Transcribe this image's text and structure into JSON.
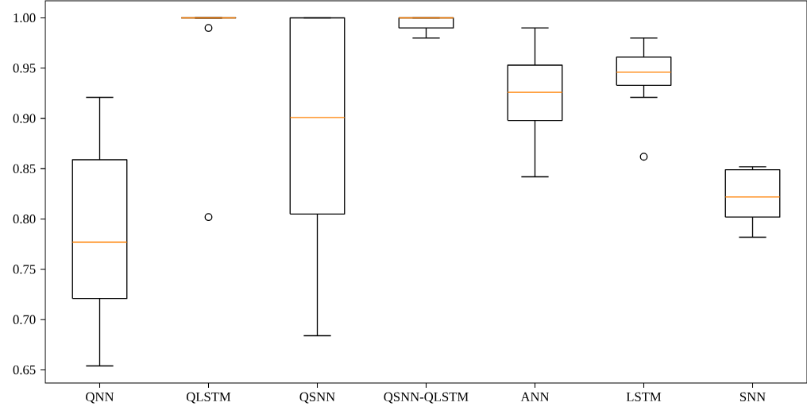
{
  "chart_data": {
    "type": "box",
    "categories": [
      "QNN",
      "QLSTM",
      "QSNN",
      "QSNN-QLSTM",
      "ANN",
      "LSTM",
      "SNN"
    ],
    "series": [
      {
        "color": "#000000",
        "boxes": [
          {
            "low": 0.654,
            "q1": 0.721,
            "median": 0.777,
            "q3": 0.859,
            "high": 0.921
          },
          {
            "low": 1.0,
            "q1": 1.0,
            "median": 1.0,
            "q3": 1.0,
            "high": 1.0,
            "outliers": [
              0.99,
              0.802
            ]
          },
          {
            "low": 0.684,
            "q1": 0.805,
            "median": 0.901,
            "q3": 1.0,
            "high": 1.0
          },
          {
            "low": 0.98,
            "q1": 0.99,
            "median": 1.0,
            "q3": 1.0,
            "high": 1.0
          },
          {
            "low": 0.842,
            "q1": 0.898,
            "median": 0.926,
            "q3": 0.953,
            "high": 0.99
          },
          {
            "low": 0.921,
            "q1": 0.933,
            "median": 0.946,
            "q3": 0.961,
            "high": 0.98,
            "outliers": [
              0.862
            ]
          },
          {
            "low": 0.782,
            "q1": 0.802,
            "median": 0.822,
            "q3": 0.849,
            "high": 0.852
          }
        ]
      }
    ],
    "ylim": [
      0.637,
      1.017
    ],
    "yticks": [
      {
        "value": 0.65,
        "label": "0.65"
      },
      {
        "value": 0.7,
        "label": "0.70"
      },
      {
        "value": 0.75,
        "label": "0.75"
      },
      {
        "value": 0.8,
        "label": "0.80"
      },
      {
        "value": 0.85,
        "label": "0.85"
      },
      {
        "value": 0.9,
        "label": "0.90"
      },
      {
        "value": 0.95,
        "label": "0.95"
      },
      {
        "value": 1.0,
        "label": "1.00"
      }
    ],
    "marker": "circle"
  }
}
